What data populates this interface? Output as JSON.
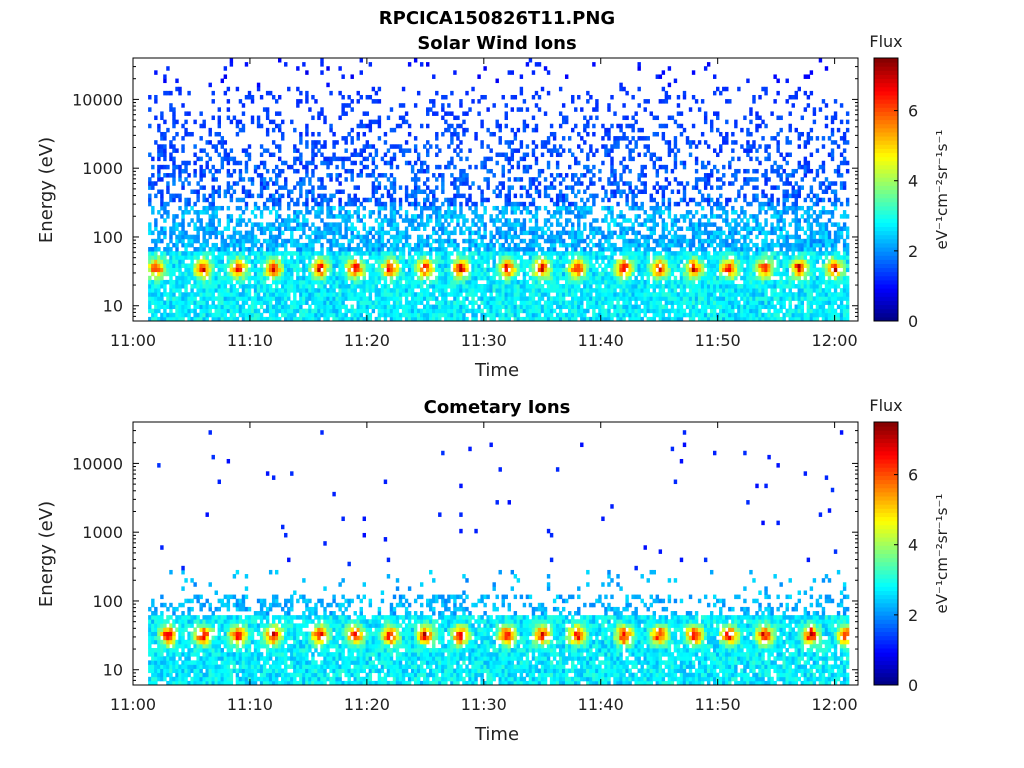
{
  "figure_title": "RPCICA150826T11.PNG",
  "chart_data": [
    {
      "type": "heatmap",
      "title": "Solar Wind Ions",
      "xlabel": "Time",
      "ylabel": "Energy (eV)",
      "x_range": [
        "11:00",
        "12:02"
      ],
      "x_ticks": [
        "11:00",
        "11:10",
        "11:20",
        "11:30",
        "11:40",
        "11:50",
        "12:00"
      ],
      "y_scale": "log",
      "y_range": [
        6,
        40000
      ],
      "y_ticks": [
        10,
        100,
        1000,
        10000
      ],
      "y_tick_labels": [
        "10",
        "100",
        "1000",
        "10000"
      ],
      "colorbar": {
        "title": "Flux",
        "label": "eV⁻¹cm⁻²sr⁻¹s⁻¹",
        "range": [
          0,
          7.5
        ],
        "ticks": [
          0,
          2,
          4,
          6
        ],
        "tick_labels": [
          "0",
          "2",
          "4",
          "6"
        ],
        "colormap": "jet"
      },
      "features": {
        "background_flux": 1.5,
        "high_energy_scatter_density": "high",
        "low_energy_peak_energy_eV": 35,
        "peak_flux": 7.0,
        "peak_times": [
          "11:02",
          "11:06",
          "11:09",
          "11:12",
          "11:16",
          "11:19",
          "11:22",
          "11:25",
          "11:28",
          "11:32",
          "11:35",
          "11:38",
          "11:42",
          "11:45",
          "11:48",
          "11:51",
          "11:54",
          "11:57",
          "12:00"
        ]
      }
    },
    {
      "type": "heatmap",
      "title": "Cometary Ions",
      "xlabel": "Time",
      "ylabel": "Energy (eV)",
      "x_range": [
        "11:00",
        "12:02"
      ],
      "x_ticks": [
        "11:00",
        "11:10",
        "11:20",
        "11:30",
        "11:40",
        "11:50",
        "12:00"
      ],
      "y_scale": "log",
      "y_range": [
        6,
        40000
      ],
      "y_ticks": [
        10,
        100,
        1000,
        10000
      ],
      "y_tick_labels": [
        "10",
        "100",
        "1000",
        "10000"
      ],
      "colorbar": {
        "title": "Flux",
        "label": "eV⁻¹cm⁻²sr⁻¹s⁻¹",
        "range": [
          0,
          7.5
        ],
        "ticks": [
          0,
          2,
          4,
          6
        ],
        "tick_labels": [
          "0",
          "2",
          "4",
          "6"
        ],
        "colormap": "jet"
      },
      "features": {
        "background_flux": 1.2,
        "high_energy_scatter_density": "low",
        "low_energy_peak_energy_eV": 32,
        "peak_flux": 7.3,
        "peak_times": [
          "11:03",
          "11:06",
          "11:09",
          "11:12",
          "11:16",
          "11:19",
          "11:22",
          "11:25",
          "11:28",
          "11:32",
          "11:35",
          "11:38",
          "11:42",
          "11:45",
          "11:48",
          "11:51",
          "11:54",
          "11:58",
          "12:01"
        ]
      }
    }
  ]
}
